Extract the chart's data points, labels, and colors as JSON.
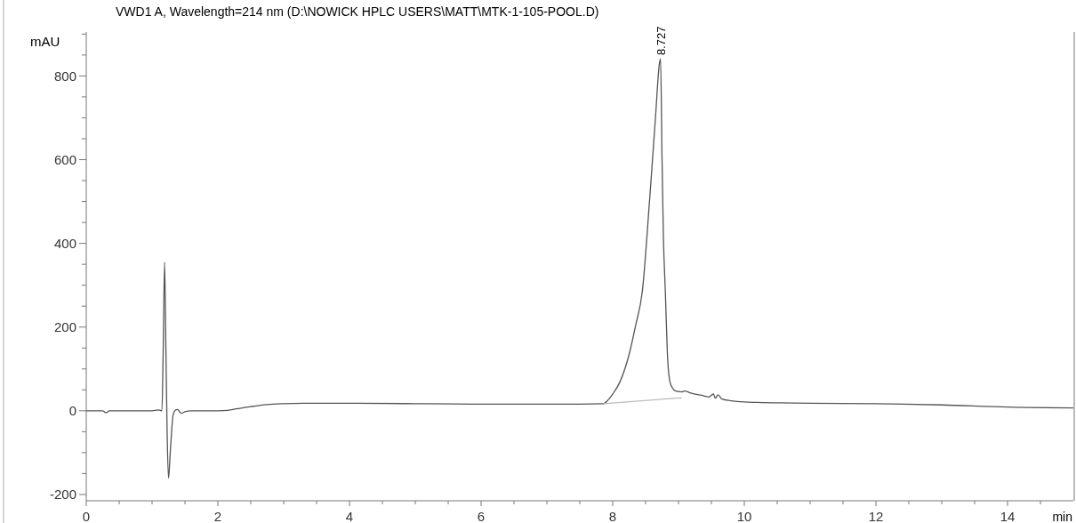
{
  "chart_data": {
    "type": "line",
    "title": "VWD1 A, Wavelength=214 nm (D:\\NOWICK HPLC USERS\\MATT\\MTK-1-105-POOL.D)",
    "ylabel": "mAU",
    "xlabel": "min",
    "xlim": [
      0,
      15
    ],
    "ylim": [
      -215,
      905
    ],
    "xticks": [
      0,
      {
        "value": 0.5,
        "label": null
      },
      {
        "value": 1,
        "label": null
      },
      {
        "value": 1.5,
        "label": null
      },
      2,
      {
        "value": 2.5,
        "label": null
      },
      {
        "value": 3,
        "label": null
      },
      {
        "value": 3.5,
        "label": null
      },
      4,
      {
        "value": 4.5,
        "label": null
      },
      {
        "value": 5,
        "label": null
      },
      {
        "value": 5.5,
        "label": null
      },
      6,
      {
        "value": 6.5,
        "label": null
      },
      {
        "value": 7,
        "label": null
      },
      {
        "value": 7.5,
        "label": null
      },
      8,
      {
        "value": 8.5,
        "label": null
      },
      {
        "value": 9,
        "label": null
      },
      {
        "value": 9.5,
        "label": null
      },
      10,
      {
        "value": 10.5,
        "label": null
      },
      {
        "value": 11,
        "label": null
      },
      {
        "value": 11.5,
        "label": null
      },
      12,
      {
        "value": 12.5,
        "label": null
      },
      {
        "value": 13,
        "label": null
      },
      {
        "value": 13.5,
        "label": null
      },
      14,
      {
        "value": 14.5,
        "label": null
      }
    ],
    "yticks": [
      -200,
      {
        "value": -150,
        "label": null
      },
      {
        "value": -100,
        "label": null
      },
      {
        "value": -50,
        "label": null
      },
      0,
      {
        "value": 50,
        "label": null
      },
      {
        "value": 100,
        "label": null
      },
      {
        "value": 150,
        "label": null
      },
      200,
      {
        "value": 250,
        "label": null
      },
      {
        "value": 300,
        "label": null
      },
      {
        "value": 350,
        "label": null
      },
      400,
      {
        "value": 450,
        "label": null
      },
      {
        "value": 500,
        "label": null
      },
      {
        "value": 550,
        "label": null
      },
      600,
      {
        "value": 650,
        "label": null
      },
      {
        "value": 700,
        "label": null
      },
      {
        "value": 750,
        "label": null
      },
      800,
      {
        "value": 850,
        "label": null
      },
      {
        "value": 900,
        "label": null
      }
    ],
    "grid": false,
    "line_style": "solid",
    "annotations": [
      {
        "text": "8.727",
        "x": 8.727,
        "y": 841
      }
    ],
    "series": [
      {
        "color": "#555555",
        "x": [
          0,
          0.25,
          0.3,
          0.35,
          0.5,
          1.0,
          1.1,
          1.15,
          1.17,
          1.19,
          1.21,
          1.23,
          1.25,
          1.28,
          1.32,
          1.36,
          1.39,
          1.42,
          1.45,
          1.5,
          1.6,
          2.0,
          2.15,
          2.3,
          2.5,
          2.75,
          3.0,
          3.3,
          4.0,
          5.0,
          6.0,
          7.0,
          7.5,
          7.86,
          7.93,
          8.0,
          8.11,
          8.26,
          8.35,
          8.45,
          8.56,
          8.65,
          8.71,
          8.727,
          8.75,
          8.77,
          8.8,
          8.83,
          8.87,
          8.92,
          8.96,
          9.05,
          9.09,
          9.2,
          9.35,
          9.46,
          9.5,
          9.53,
          9.56,
          9.6,
          9.66,
          9.8,
          10.0,
          10.18,
          10.5,
          11.0,
          12.0,
          13.0,
          14.0,
          15.0
        ],
        "values": [
          0,
          0,
          -5,
          0,
          0,
          0,
          2,
          0,
          150,
          355,
          150,
          -60,
          -161,
          -90,
          -10,
          2,
          3,
          -3,
          -6,
          -2,
          0,
          0,
          1,
          5,
          10,
          15,
          17,
          18,
          18,
          17,
          16,
          16,
          16,
          17,
          26,
          40,
          69,
          141,
          205,
          285,
          502,
          700,
          830,
          841,
          600,
          420,
          285,
          141,
          69,
          52,
          47,
          45,
          47,
          42,
          37,
          33,
          37,
          40,
          30,
          38,
          28,
          24,
          21,
          20,
          19,
          18,
          17,
          14,
          9,
          7
        ]
      },
      {
        "color": "#bbbbbb",
        "x": [
          7.86,
          9.05
        ],
        "values": [
          17,
          31
        ]
      }
    ]
  }
}
